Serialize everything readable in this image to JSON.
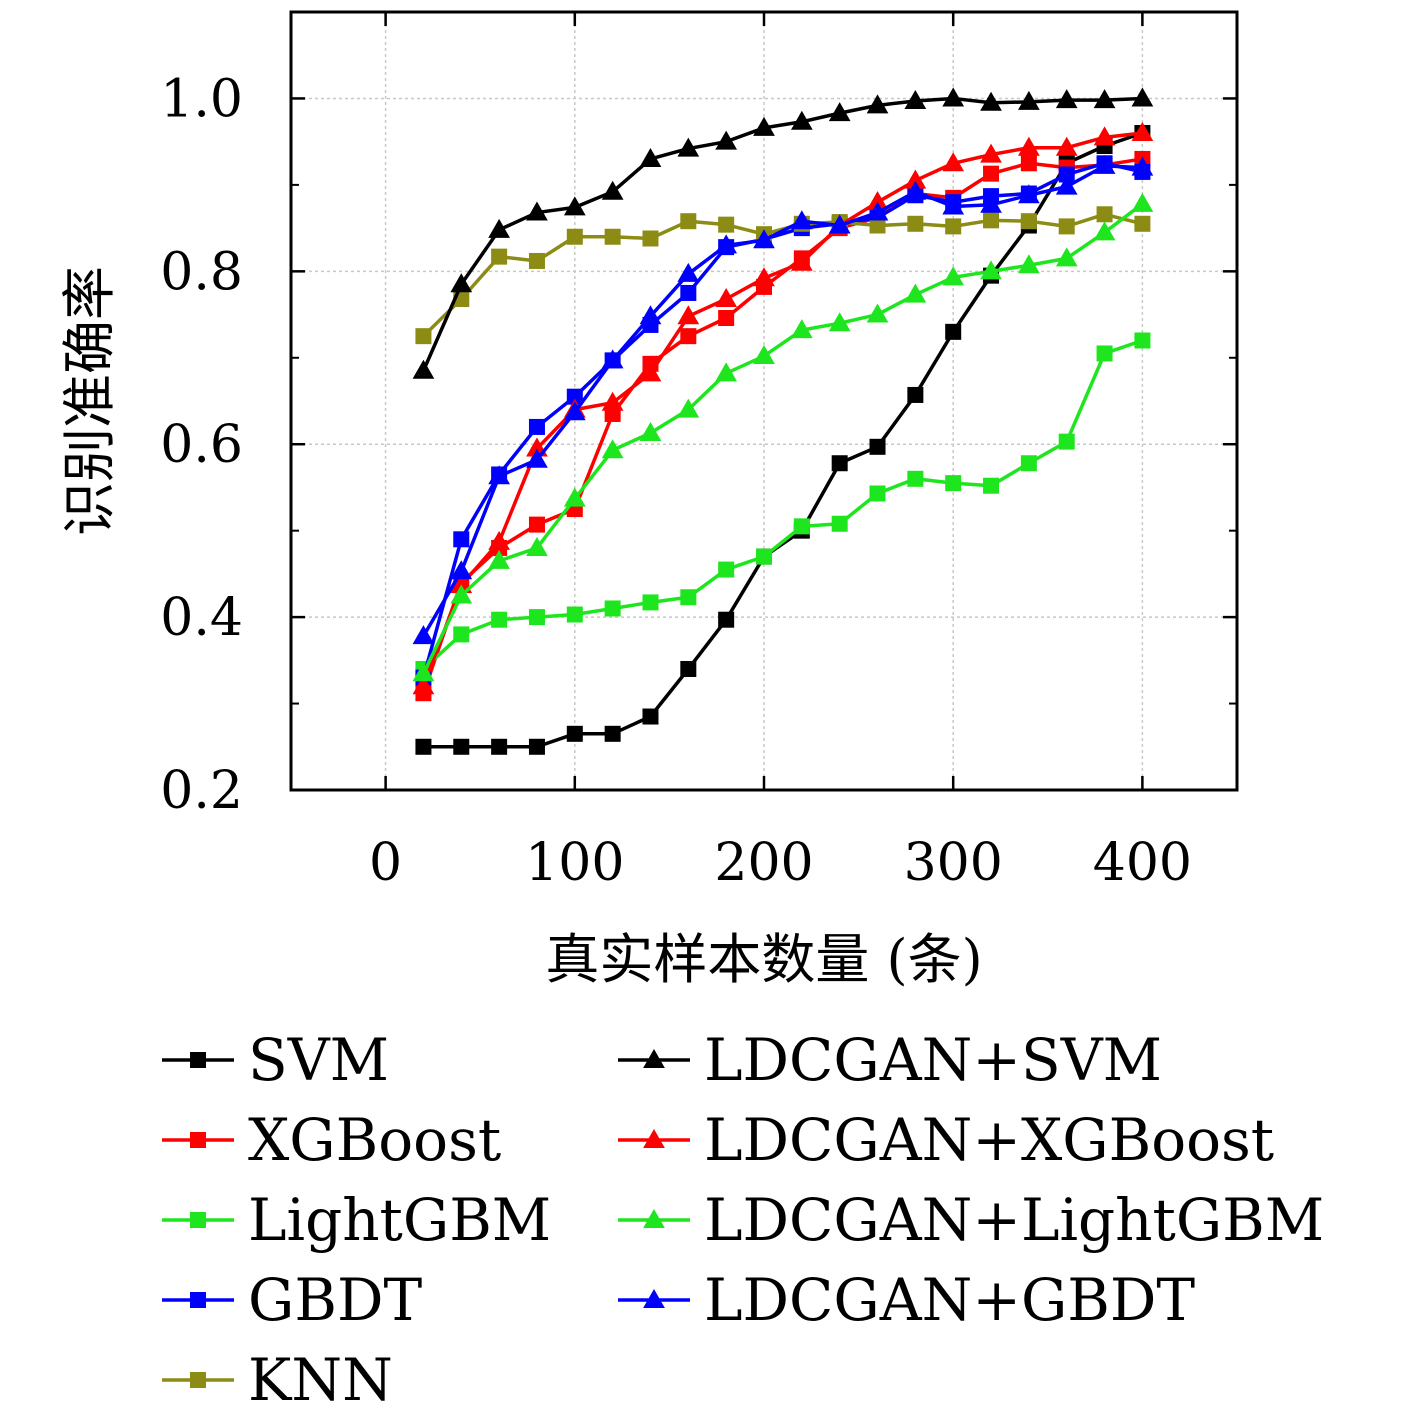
{
  "chart_data": {
    "type": "line",
    "xlabel": "真实样本数量 (条)",
    "ylabel": "识别准确率",
    "xlim": [
      -50,
      450
    ],
    "ylim": [
      0.2,
      1.1
    ],
    "xticks": [
      0,
      100,
      200,
      300,
      400
    ],
    "xtick_labels": [
      "0",
      "100",
      "200",
      "300",
      "400"
    ],
    "yticks": [
      0.2,
      0.4,
      0.6,
      0.8,
      1.0
    ],
    "ytick_labels": [
      "0.2",
      "0.4",
      "0.6",
      "0.8",
      "1.0"
    ],
    "grid": true,
    "legend_position": "below",
    "x": [
      20,
      40,
      60,
      80,
      100,
      120,
      140,
      160,
      180,
      200,
      220,
      240,
      260,
      280,
      300,
      320,
      340,
      360,
      380,
      400
    ],
    "series": [
      {
        "name": "SVM",
        "color": "#000000",
        "marker": "square",
        "values": [
          0.25,
          0.25,
          0.25,
          0.25,
          0.265,
          0.265,
          0.285,
          0.34,
          0.397,
          0.47,
          0.5,
          0.578,
          0.597,
          0.657,
          0.73,
          0.795,
          0.853,
          0.925,
          0.945,
          0.96
        ]
      },
      {
        "name": "XGBoost",
        "color": "#ff0000",
        "marker": "square",
        "values": [
          0.312,
          0.44,
          0.48,
          0.507,
          0.525,
          0.635,
          0.693,
          0.725,
          0.746,
          0.782,
          0.815,
          0.85,
          0.862,
          0.89,
          0.885,
          0.913,
          0.925,
          0.92,
          0.923,
          0.93
        ]
      },
      {
        "name": "LightGBM",
        "color": "#1ee61e",
        "marker": "square",
        "values": [
          0.34,
          0.38,
          0.397,
          0.4,
          0.403,
          0.41,
          0.417,
          0.423,
          0.455,
          0.47,
          0.505,
          0.508,
          0.543,
          0.56,
          0.555,
          0.552,
          0.578,
          0.603,
          0.705,
          0.72
        ]
      },
      {
        "name": "GBDT",
        "color": "#0000ff",
        "marker": "square",
        "values": [
          0.33,
          0.49,
          0.565,
          0.62,
          0.655,
          0.697,
          0.738,
          0.775,
          0.828,
          0.837,
          0.85,
          0.855,
          0.862,
          0.888,
          0.88,
          0.887,
          0.89,
          0.912,
          0.925,
          0.915
        ]
      },
      {
        "name": "KNN",
        "color": "#8c8c14",
        "marker": "square",
        "values": [
          0.725,
          0.768,
          0.817,
          0.812,
          0.84,
          0.84,
          0.838,
          0.858,
          0.854,
          0.843,
          0.855,
          0.857,
          0.853,
          0.855,
          0.852,
          0.859,
          0.858,
          0.852,
          0.866,
          0.855
        ]
      },
      {
        "name": "LDCGAN+SVM",
        "color": "#000000",
        "marker": "triangle",
        "values": [
          0.685,
          0.785,
          0.848,
          0.868,
          0.874,
          0.892,
          0.93,
          0.942,
          0.95,
          0.966,
          0.973,
          0.983,
          0.992,
          0.997,
          1.0,
          0.995,
          0.996,
          0.998,
          0.998,
          1.0
        ]
      },
      {
        "name": "LDCGAN+XGBoost",
        "color": "#ff0000",
        "marker": "triangle",
        "values": [
          0.32,
          0.437,
          0.487,
          0.595,
          0.64,
          0.648,
          0.682,
          0.748,
          0.768,
          0.792,
          0.81,
          0.853,
          0.88,
          0.905,
          0.925,
          0.935,
          0.943,
          0.943,
          0.955,
          0.96
        ]
      },
      {
        "name": "LDCGAN+LightGBM",
        "color": "#1ee61e",
        "marker": "triangle",
        "values": [
          0.335,
          0.425,
          0.465,
          0.48,
          0.537,
          0.593,
          0.613,
          0.64,
          0.682,
          0.702,
          0.732,
          0.74,
          0.75,
          0.773,
          0.793,
          0.8,
          0.807,
          0.815,
          0.845,
          0.878
        ]
      },
      {
        "name": "LDCGAN+GBDT",
        "color": "#0000ff",
        "marker": "triangle",
        "values": [
          0.378,
          0.453,
          0.563,
          0.582,
          0.637,
          0.697,
          0.748,
          0.797,
          0.83,
          0.836,
          0.858,
          0.853,
          0.868,
          0.892,
          0.875,
          0.877,
          0.888,
          0.898,
          0.922,
          0.92
        ]
      }
    ]
  }
}
